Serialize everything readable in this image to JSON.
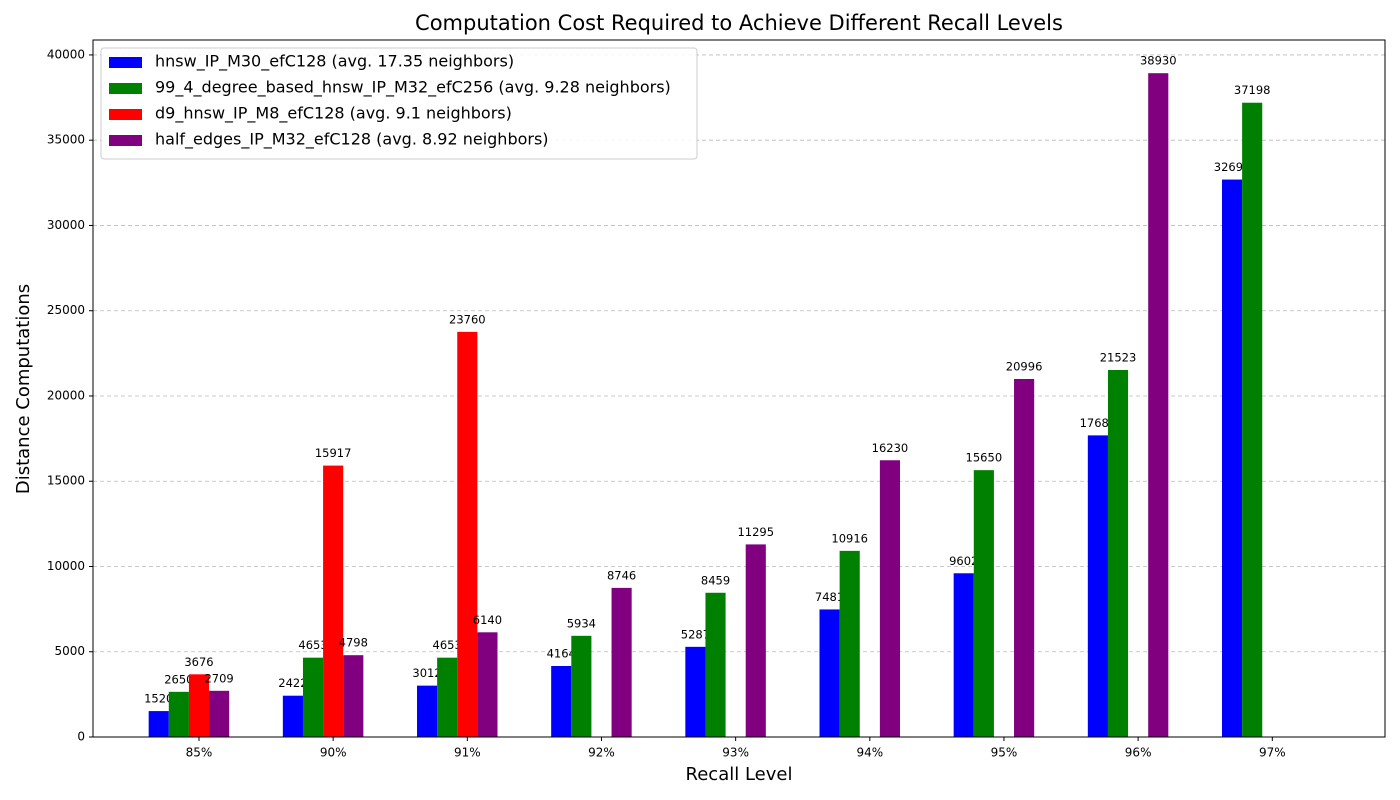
{
  "chart_data": {
    "type": "bar",
    "title": "Computation Cost Required to Achieve Different Recall Levels",
    "x_label": "Recall Level",
    "y_label": "Distance Computations",
    "categories": [
      "85%",
      "90%",
      "91%",
      "92%",
      "93%",
      "94%",
      "95%",
      "96%",
      "97%"
    ],
    "series": [
      {
        "name": "hnsw_IP_M30_efC128 (avg. 17.35 neighbors)",
        "color": "#0000ff",
        "values": [
          1520,
          2422,
          3012,
          4164,
          5287,
          7481,
          9602,
          17689,
          32692
        ]
      },
      {
        "name": "99_4_degree_based_hnsw_IP_M32_efC256 (avg. 9.28 neighbors)",
        "color": "#008000",
        "values": [
          2650,
          4653,
          4653,
          5934,
          8459,
          10916,
          15650,
          21523,
          37198
        ]
      },
      {
        "name": "d9_hnsw_IP_M8_efC128 (avg. 9.1 neighbors)",
        "color": "#ff0000",
        "values": [
          3676,
          15917,
          23760,
          null,
          null,
          null,
          null,
          null,
          null
        ]
      },
      {
        "name": "half_edges_IP_M32_efC128 (avg. 8.92 neighbors)",
        "color": "#800080",
        "values": [
          2709,
          4798,
          6140,
          8746,
          11295,
          16230,
          20996,
          38930,
          null
        ]
      }
    ],
    "ylim": [
      0,
      40876.5
    ],
    "yticks": [
      0,
      5000,
      10000,
      15000,
      20000,
      25000,
      30000,
      35000,
      40000
    ],
    "grid": true,
    "legend": "upper-left"
  }
}
